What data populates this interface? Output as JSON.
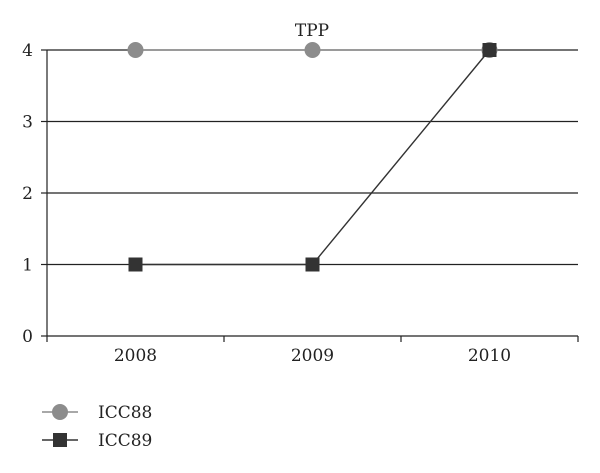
{
  "chart_data": {
    "type": "line",
    "title": "TPP",
    "xlabel": "",
    "ylabel": "",
    "categories": [
      "2008",
      "2009",
      "2010"
    ],
    "ylim": [
      0,
      4
    ],
    "yticks": [
      "0",
      "1",
      "2",
      "3",
      "4"
    ],
    "grid": true,
    "legend_position": "bottom-left",
    "series": [
      {
        "name": "ICC88",
        "values": [
          4,
          4,
          4
        ],
        "color": "#8c8c8c",
        "marker": "circle"
      },
      {
        "name": "ICC89",
        "values": [
          1,
          1,
          4
        ],
        "color": "#333333",
        "marker": "square"
      }
    ]
  }
}
